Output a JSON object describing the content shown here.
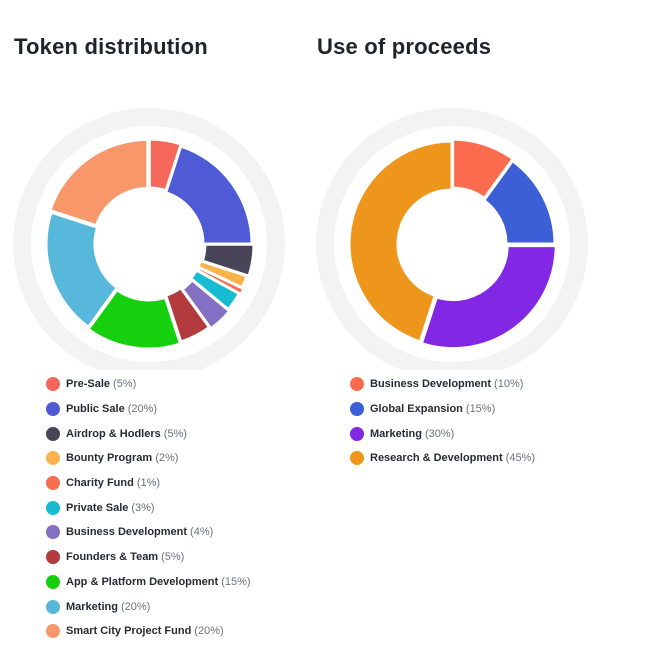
{
  "chart_data": [
    {
      "type": "pie",
      "title": "Token distribution",
      "slices": [
        {
          "label": "Pre-Sale",
          "value": 5,
          "pct_label": "(5%)",
          "color": "#f4675a"
        },
        {
          "label": "Public Sale",
          "value": 20,
          "pct_label": "(20%)",
          "color": "#4f5bd5"
        },
        {
          "label": "Airdrop & Hodlers",
          "value": 5,
          "pct_label": "(5%)",
          "color": "#4a4458"
        },
        {
          "label": "Bounty Program",
          "value": 2,
          "pct_label": "(2%)",
          "color": "#fbb24b"
        },
        {
          "label": "Charity Fund",
          "value": 1,
          "pct_label": "(1%)",
          "color": "#f66d4f"
        },
        {
          "label": "Private Sale",
          "value": 3,
          "pct_label": "(3%)",
          "color": "#18bcd2"
        },
        {
          "label": "Business Development",
          "value": 4,
          "pct_label": "(4%)",
          "color": "#8470c2"
        },
        {
          "label": "Founders & Team",
          "value": 5,
          "pct_label": "(5%)",
          "color": "#b33b3e"
        },
        {
          "label": "App & Platform Development",
          "value": 15,
          "pct_label": "(15%)",
          "color": "#16d00e"
        },
        {
          "label": "Marketing",
          "value": 20,
          "pct_label": "(20%)",
          "color": "#57b8db"
        },
        {
          "label": "Smart City Project Fund",
          "value": 20,
          "pct_label": "(20%)",
          "color": "#f8976a"
        }
      ]
    },
    {
      "type": "pie",
      "title": "Use of proceeds",
      "slices": [
        {
          "label": "Business Development",
          "value": 10,
          "pct_label": "(10%)",
          "color": "#fb6c4e"
        },
        {
          "label": "Global Expansion",
          "value": 15,
          "pct_label": "(15%)",
          "color": "#3c5fd7"
        },
        {
          "label": "Marketing",
          "value": 30,
          "pct_label": "(30%)",
          "color": "#8227e3"
        },
        {
          "label": "Research & Development",
          "value": 45,
          "pct_label": "(45%)",
          "color": "#ee951c"
        }
      ]
    }
  ]
}
